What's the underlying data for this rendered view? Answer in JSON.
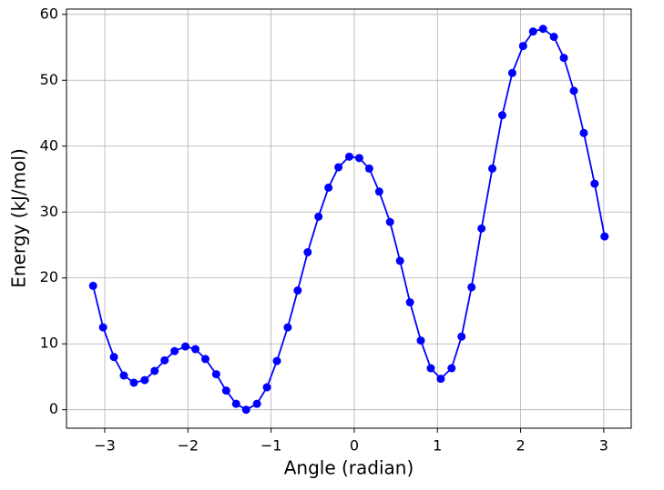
{
  "chart_data": {
    "type": "line",
    "xlabel": "Angle (radian)",
    "ylabel": "Energy (kJ/mol)",
    "x": [
      -3.14,
      -3.02,
      -2.89,
      -2.77,
      -2.65,
      -2.52,
      -2.4,
      -2.28,
      -2.16,
      -2.03,
      -1.91,
      -1.79,
      -1.66,
      -1.54,
      -1.42,
      -1.3,
      -1.17,
      -1.05,
      -0.93,
      -0.8,
      -0.68,
      -0.56,
      -0.43,
      -0.31,
      -0.19,
      -0.06,
      0.06,
      0.18,
      0.3,
      0.43,
      0.55,
      0.67,
      0.8,
      0.92,
      1.04,
      1.17,
      1.29,
      1.41,
      1.53,
      1.66,
      1.78,
      1.9,
      2.03,
      2.15,
      2.27,
      2.4,
      2.52,
      2.64,
      2.76,
      2.89,
      3.01
    ],
    "series": [
      {
        "color": "#0000ff",
        "values": [
          18.8,
          12.5,
          8.0,
          5.2,
          4.1,
          4.5,
          5.9,
          7.5,
          8.9,
          9.6,
          9.2,
          7.7,
          5.4,
          2.9,
          0.9,
          0.0,
          0.9,
          3.4,
          7.4,
          12.5,
          18.1,
          23.9,
          29.3,
          33.7,
          36.8,
          38.4,
          38.2,
          36.6,
          33.1,
          28.5,
          22.6,
          16.3,
          10.5,
          6.3,
          4.7,
          6.3,
          11.1,
          18.6,
          27.5,
          36.6,
          44.7,
          51.1,
          55.2,
          57.4,
          57.8,
          56.6,
          53.4,
          48.4,
          42.0,
          34.3,
          26.3
        ]
      }
    ],
    "xlim": [
      -3.46,
      3.33
    ],
    "ylim": [
      -2.8,
      60.8
    ],
    "xticks": [
      {
        "value": -3,
        "label": "−3"
      },
      {
        "value": -2,
        "label": "−2"
      },
      {
        "value": -1,
        "label": "−1"
      },
      0,
      1,
      2,
      3
    ],
    "yticks": [
      0,
      10,
      20,
      30,
      40,
      50,
      60
    ],
    "grid": true
  }
}
